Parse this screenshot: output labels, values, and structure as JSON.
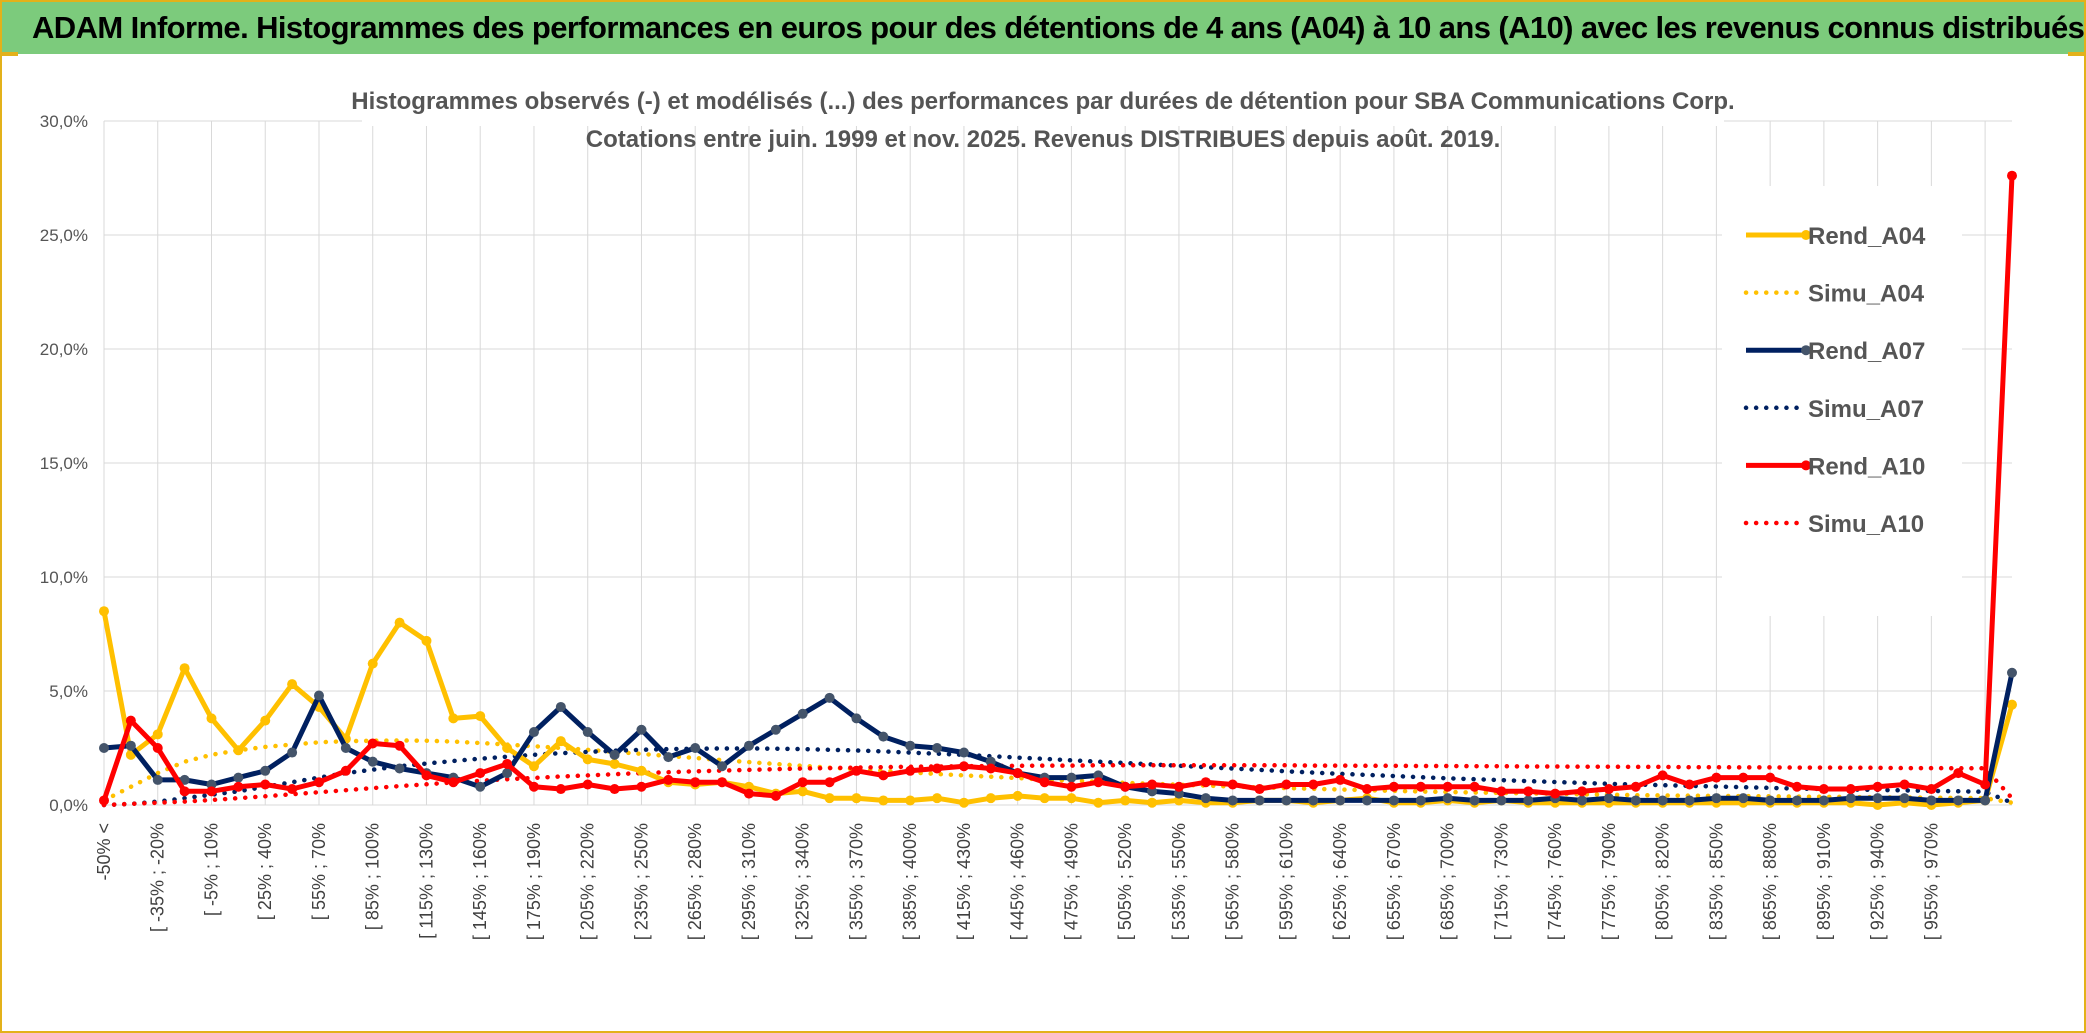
{
  "banner": {
    "title": "ADAM Informe. Histogrammes des performances en euros pour des détentions de 4 ans (A04) à 10 ans (A10) avec les revenus connus distribués"
  },
  "colors": {
    "banner_bg": "#7ccb7c",
    "frame": "#e3b11a",
    "a04": "#ffc000",
    "a07": "#002060",
    "a10": "#ff0000",
    "grid": "#d9d9d9"
  },
  "chart_data": {
    "type": "line",
    "title": "Histogrammes observés (-) et modélisés (...) des performances par durées de détention pour SBA Communications Corp.",
    "subtitle": "Cotations entre juin. 1999 et nov. 2025. Revenus DISTRIBUES depuis août. 2019.",
    "ylim": [
      0,
      30
    ],
    "y_ticks": [
      "0,0%",
      "5,0%",
      "10,0%",
      "15,0%",
      "20,0%",
      "25,0%",
      "30,0%"
    ],
    "x_tick_labels": [
      "-50% <",
      "[ -35% ; -20%",
      "[ -5% ; 10%",
      "[ 25% ; 40%",
      "[ 55% ; 70%",
      "[ 85% ; 100%",
      "[ 115% ; 130%",
      "[ 145% ; 160%",
      "[ 175% ; 190%",
      "[ 205% ; 220%",
      "[ 235% ; 250%",
      "[ 265% ; 280%",
      "[ 295% ; 310%",
      "[ 325% ; 340%",
      "[ 355% ; 370%",
      "[ 385% ; 400%",
      "[ 415% ; 430%",
      "[ 445% ; 460%",
      "[ 475% ; 490%",
      "[ 505% ; 520%",
      "[ 535% ; 550%",
      "[ 565% ; 580%",
      "[ 595% ; 610%",
      "[ 625% ; 640%",
      "[ 655% ; 670%",
      "[ 685% ; 700%",
      "[ 715% ; 730%",
      "[ 745% ; 760%",
      "[ 775% ; 790%",
      "[ 805% ; 820%",
      "[ 835% ; 850%",
      "[ 865% ; 880%",
      "[ 895% ; 910%",
      "[ 925% ; 940%",
      "[ 955% ; 970%"
    ],
    "grid": true,
    "legend_position": "right",
    "series": [
      {
        "name": "Rend_A04",
        "style": "solid",
        "color": "#ffc000",
        "values": [
          8.5,
          2.2,
          3.1,
          6.0,
          3.8,
          2.4,
          3.7,
          5.3,
          4.3,
          2.9,
          6.2,
          8.0,
          7.2,
          3.8,
          3.9,
          2.5,
          1.7,
          2.8,
          2.0,
          1.8,
          1.5,
          1.0,
          0.9,
          1.0,
          0.8,
          0.5,
          0.6,
          0.3,
          0.3,
          0.2,
          0.2,
          0.3,
          0.1,
          0.3,
          0.4,
          0.3,
          0.3,
          0.1,
          0.2,
          0.1,
          0.2,
          0.1,
          0.1,
          0.2,
          0.2,
          0.1,
          0.2,
          0.3,
          0.1,
          0.1,
          0.2,
          0.1,
          0.2,
          0.1,
          0.1,
          0.1,
          0.1,
          0.1,
          0.1,
          0.1,
          0.1,
          0.1,
          0.1,
          0.1,
          0.1,
          0.1,
          0.0,
          0.1,
          0.0,
          0.1,
          0.2,
          4.4
        ]
      },
      {
        "name": "Simu_A04",
        "style": "dotted",
        "color": "#ffc000",
        "values": [
          0.2,
          0.8,
          1.4,
          1.9,
          2.2,
          2.4,
          2.55,
          2.65,
          2.75,
          2.8,
          2.82,
          2.83,
          2.82,
          2.78,
          2.72,
          2.65,
          2.58,
          2.5,
          2.42,
          2.33,
          2.24,
          2.15,
          2.06,
          1.97,
          1.88,
          1.8,
          1.72,
          1.64,
          1.57,
          1.5,
          1.43,
          1.36,
          1.3,
          1.24,
          1.18,
          1.12,
          1.07,
          1.02,
          0.97,
          0.93,
          0.89,
          0.85,
          0.81,
          0.77,
          0.74,
          0.71,
          0.68,
          0.65,
          0.62,
          0.59,
          0.57,
          0.55,
          0.53,
          0.51,
          0.49,
          0.47,
          0.45,
          0.43,
          0.42,
          0.41,
          0.4,
          0.39,
          0.38,
          0.37,
          0.36,
          0.35,
          0.34,
          0.33,
          0.32,
          0.31,
          0.3,
          0.1
        ]
      },
      {
        "name": "Rend_A07",
        "style": "solid",
        "color": "#002060",
        "values": [
          2.5,
          2.6,
          1.1,
          1.1,
          0.9,
          1.2,
          1.5,
          2.3,
          4.8,
          2.5,
          1.9,
          1.6,
          1.4,
          1.2,
          0.8,
          1.4,
          3.2,
          4.3,
          3.2,
          2.2,
          3.3,
          2.1,
          2.5,
          1.7,
          2.6,
          3.3,
          4.0,
          4.7,
          3.8,
          3.0,
          2.6,
          2.5,
          2.3,
          1.9,
          1.4,
          1.2,
          1.2,
          1.3,
          0.8,
          0.6,
          0.5,
          0.3,
          0.2,
          0.2,
          0.2,
          0.2,
          0.2,
          0.2,
          0.2,
          0.2,
          0.3,
          0.2,
          0.2,
          0.2,
          0.3,
          0.2,
          0.3,
          0.2,
          0.2,
          0.2,
          0.3,
          0.3,
          0.2,
          0.2,
          0.2,
          0.3,
          0.3,
          0.3,
          0.2,
          0.2,
          0.2,
          5.8
        ]
      },
      {
        "name": "Simu_A07",
        "style": "dotted",
        "color": "#002060",
        "values": [
          0.0,
          0.05,
          0.15,
          0.3,
          0.45,
          0.6,
          0.8,
          1.0,
          1.2,
          1.4,
          1.55,
          1.7,
          1.82,
          1.93,
          2.03,
          2.12,
          2.2,
          2.27,
          2.33,
          2.38,
          2.42,
          2.45,
          2.47,
          2.48,
          2.48,
          2.47,
          2.45,
          2.42,
          2.39,
          2.35,
          2.3,
          2.25,
          2.2,
          2.14,
          2.08,
          2.02,
          1.96,
          1.9,
          1.84,
          1.78,
          1.72,
          1.66,
          1.6,
          1.54,
          1.48,
          1.42,
          1.37,
          1.32,
          1.27,
          1.22,
          1.17,
          1.13,
          1.09,
          1.05,
          1.01,
          0.97,
          0.93,
          0.9,
          0.87,
          0.84,
          0.81,
          0.78,
          0.75,
          0.72,
          0.7,
          0.68,
          0.66,
          0.64,
          0.62,
          0.6,
          0.58,
          0.1
        ]
      },
      {
        "name": "Rend_A10",
        "style": "solid",
        "color": "#ff0000",
        "values": [
          0.2,
          3.7,
          2.5,
          0.6,
          0.6,
          0.8,
          0.9,
          0.7,
          1.0,
          1.5,
          2.7,
          2.6,
          1.3,
          1.0,
          1.4,
          1.8,
          0.8,
          0.7,
          0.9,
          0.7,
          0.8,
          1.1,
          1.0,
          1.0,
          0.5,
          0.4,
          1.0,
          1.0,
          1.5,
          1.3,
          1.5,
          1.6,
          1.7,
          1.6,
          1.4,
          1.0,
          0.8,
          1.0,
          0.8,
          0.9,
          0.8,
          1.0,
          0.9,
          0.7,
          0.9,
          0.9,
          1.1,
          0.7,
          0.8,
          0.8,
          0.8,
          0.8,
          0.6,
          0.6,
          0.5,
          0.6,
          0.7,
          0.8,
          1.3,
          0.9,
          1.2,
          1.2,
          1.2,
          0.8,
          0.7,
          0.7,
          0.8,
          0.9,
          0.7,
          1.4,
          0.9,
          27.6
        ]
      },
      {
        "name": "Simu_A10",
        "style": "dotted",
        "color": "#ff0000",
        "values": [
          0.0,
          0.05,
          0.1,
          0.15,
          0.22,
          0.3,
          0.38,
          0.47,
          0.56,
          0.65,
          0.74,
          0.83,
          0.91,
          0.99,
          1.06,
          1.13,
          1.19,
          1.25,
          1.3,
          1.35,
          1.4,
          1.44,
          1.48,
          1.51,
          1.54,
          1.57,
          1.6,
          1.62,
          1.64,
          1.66,
          1.68,
          1.69,
          1.7,
          1.71,
          1.72,
          1.73,
          1.73,
          1.74,
          1.74,
          1.74,
          1.74,
          1.74,
          1.74,
          1.74,
          1.74,
          1.73,
          1.73,
          1.72,
          1.72,
          1.71,
          1.71,
          1.7,
          1.7,
          1.69,
          1.69,
          1.68,
          1.68,
          1.67,
          1.67,
          1.66,
          1.66,
          1.65,
          1.65,
          1.64,
          1.64,
          1.63,
          1.63,
          1.62,
          1.62,
          1.61,
          1.61,
          0.3
        ]
      }
    ]
  }
}
